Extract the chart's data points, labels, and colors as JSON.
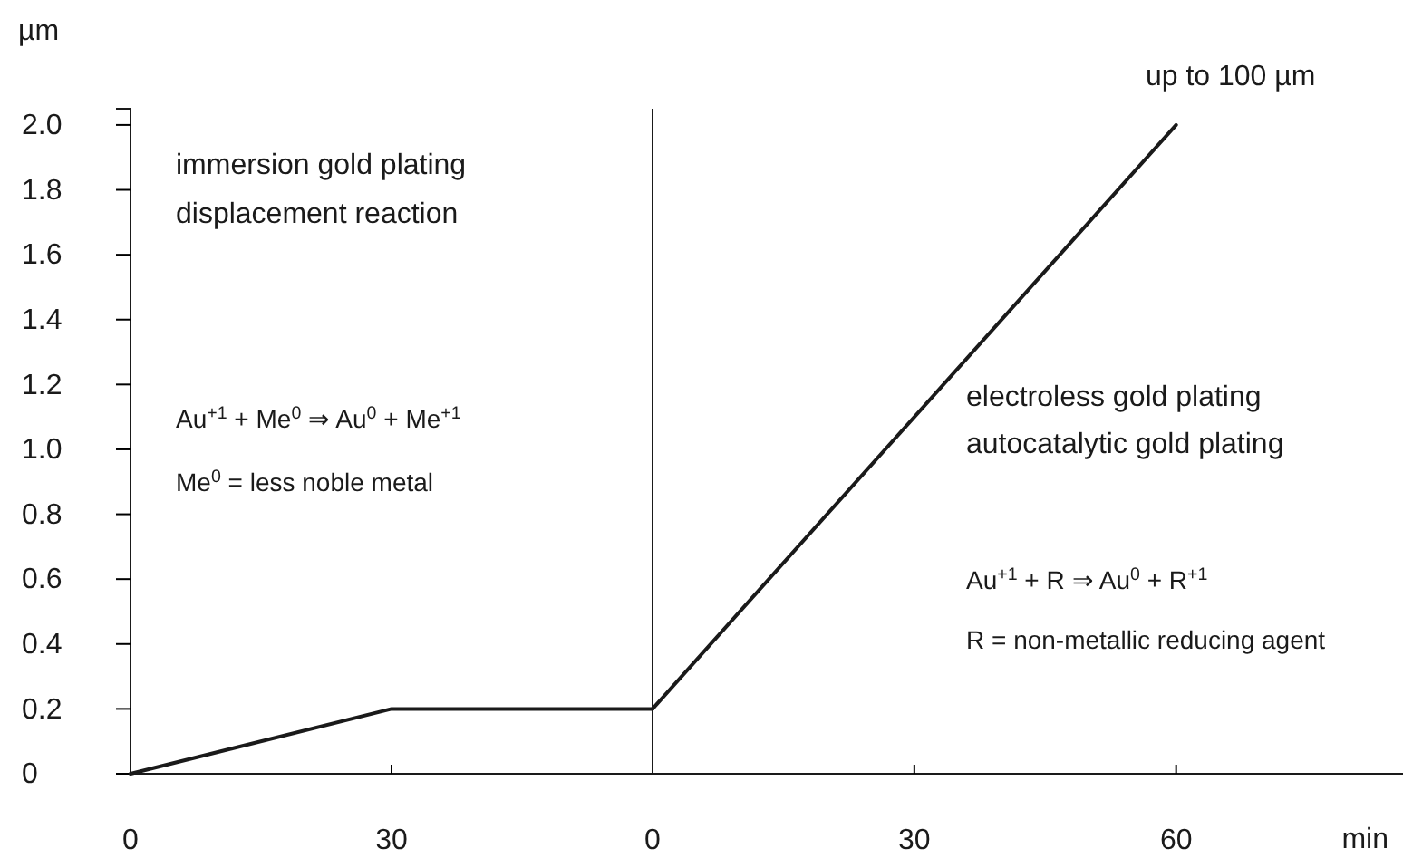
{
  "chart_data": [
    {
      "type": "line",
      "ylabel": "µm",
      "x": [
        0,
        30,
        60
      ],
      "series": [
        {
          "color": "#1a1a1a",
          "values": [
            0,
            0.2,
            0.2
          ]
        }
      ],
      "xlim": [
        0,
        60
      ],
      "ylim": [
        0,
        2.05
      ],
      "xticks": [
        0,
        30
      ],
      "yticks": [
        {
          "value": 0,
          "label": "0"
        },
        0.2,
        0.4,
        0.6,
        0.8,
        {
          "value": 1,
          "label": "1.0"
        },
        1.2,
        1.4,
        1.6,
        1.8,
        {
          "value": 2,
          "label": "2.0"
        }
      ],
      "marker": "none",
      "line_style": "solid",
      "annotations": [
        "immersion gold plating",
        "displacement reaction",
        "Au$^{+1}$ + Me$^{0}$ ⇒ Au$^{0}$ + Me$^{+1}$",
        "Me$^{0}$ = less noble metal"
      ]
    },
    {
      "type": "line",
      "xlabel": "min",
      "x": [
        0,
        60
      ],
      "series": [
        {
          "color": "#1a1a1a",
          "values": [
            0.2,
            2.0
          ]
        }
      ],
      "xlim": [
        0,
        86
      ],
      "ylim": [
        0,
        2.05
      ],
      "xticks": [
        0,
        30,
        60
      ],
      "tick_labels": "x",
      "marker": "none",
      "line_style": "solid",
      "annotations": [
        {
          "text": "up to 100 µm",
          "x": 60,
          "y": 2.0
        },
        "electroless gold plating",
        "autocatalytic gold plating",
        "Au$^{+1}$ + R ⇒ Au$^{0}$ + R$^{+1}$",
        "R = non-metallic reducing agent"
      ]
    }
  ]
}
